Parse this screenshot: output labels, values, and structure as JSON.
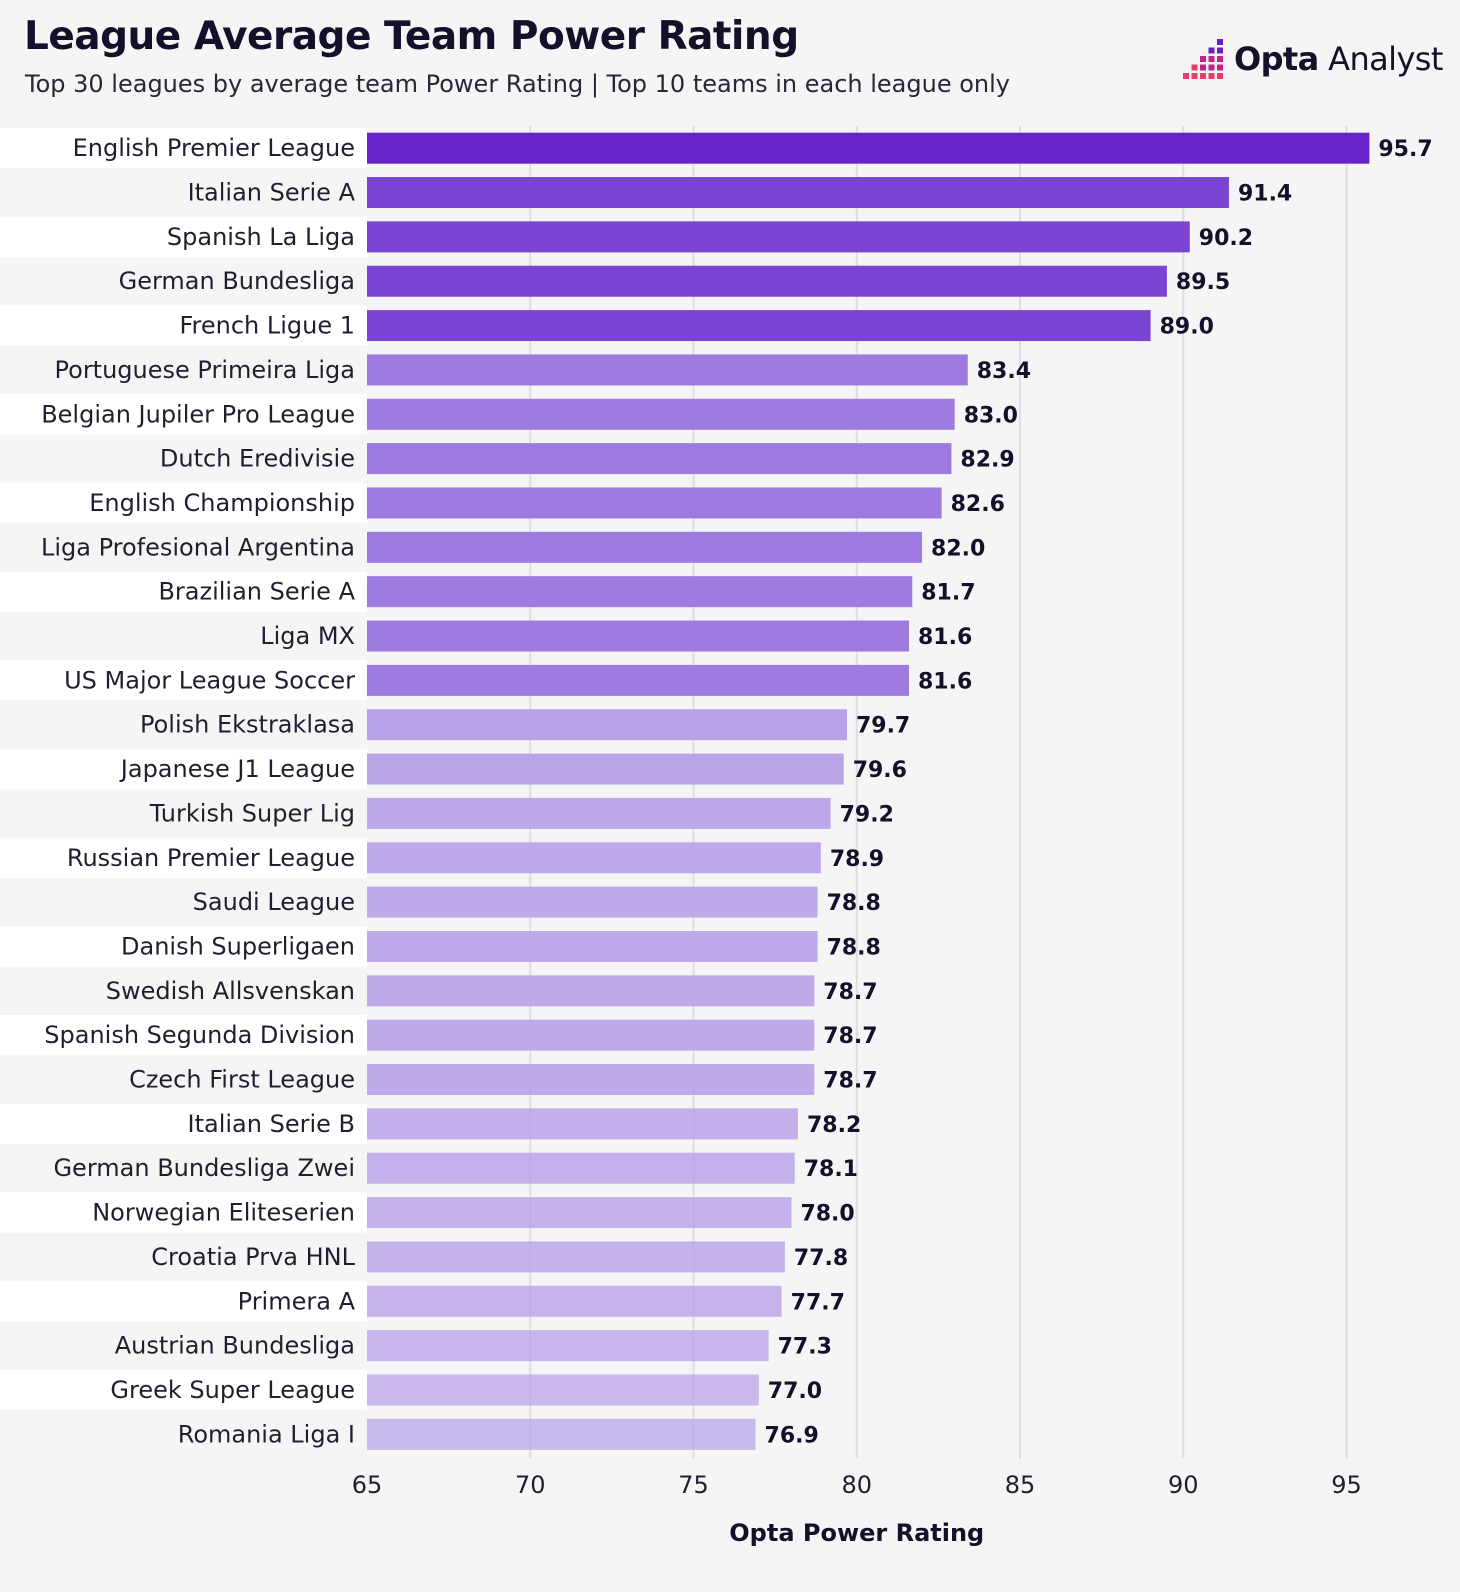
{
  "header": {
    "title": "League Average Team Power Rating",
    "subtitle": "Top 30 leagues by average team Power Rating | Top 10 teams in each league only"
  },
  "brand": {
    "name_bold": "Opta",
    "name_light": " Analyst",
    "icon": "opta-dots-icon",
    "colors": {
      "dot_dark": "#6a1fc6",
      "dot_mid": "#c2248f",
      "dot_light": "#ec3d6a"
    }
  },
  "colors": {
    "bar_top5": "#7b45d3",
    "bar_top1": "#6623c9",
    "bar_mid": "#9d7be0",
    "bar_low": "#b9a3e8",
    "grid": "#dedde2",
    "row_alt": "#ffffff"
  },
  "chart_data": {
    "type": "bar",
    "orientation": "horizontal",
    "categories": [
      "English Premier League",
      "Italian Serie A",
      "Spanish La Liga",
      "German Bundesliga",
      "French Ligue 1",
      "Portuguese Primeira Liga",
      "Belgian Jupiler Pro League",
      "Dutch Eredivisie",
      "English Championship",
      "Liga Profesional Argentina",
      "Brazilian Serie A",
      "Liga MX",
      "US Major League Soccer",
      "Polish Ekstraklasa",
      "Japanese J1 League",
      "Turkish Super Lig",
      "Russian Premier League",
      "Saudi League",
      "Danish Superligaen",
      "Swedish Allsvenskan",
      "Spanish Segunda Division",
      "Czech First League",
      "Italian Serie B",
      "German Bundesliga Zwei",
      "Norwegian Eliteserien",
      "Croatia Prva HNL",
      "Primera A",
      "Austrian Bundesliga",
      "Greek Super League",
      "Romania Liga I"
    ],
    "values": [
      95.7,
      91.4,
      90.2,
      89.5,
      89.0,
      83.4,
      83.0,
      82.9,
      82.6,
      82.0,
      81.7,
      81.6,
      81.6,
      79.7,
      79.6,
      79.2,
      78.9,
      78.8,
      78.8,
      78.7,
      78.7,
      78.7,
      78.2,
      78.1,
      78.0,
      77.8,
      77.7,
      77.3,
      77.0,
      76.9
    ],
    "value_labels": [
      "95.7",
      "91.4",
      "90.2",
      "89.5",
      "89.0",
      "83.4",
      "83.0",
      "82.9",
      "82.6",
      "82.0",
      "81.7",
      "81.6",
      "81.6",
      "79.7",
      "79.6",
      "79.2",
      "78.9",
      "78.8",
      "78.8",
      "78.7",
      "78.7",
      "78.7",
      "78.2",
      "78.1",
      "78.0",
      "77.8",
      "77.7",
      "77.3",
      "77.0",
      "76.9"
    ],
    "xlim": [
      65,
      97
    ],
    "xticks": [
      65,
      70,
      75,
      80,
      85,
      90,
      95
    ],
    "xlabel": "Opta Power Rating",
    "ylabel": "",
    "grid": "vertical",
    "legend": "none"
  }
}
